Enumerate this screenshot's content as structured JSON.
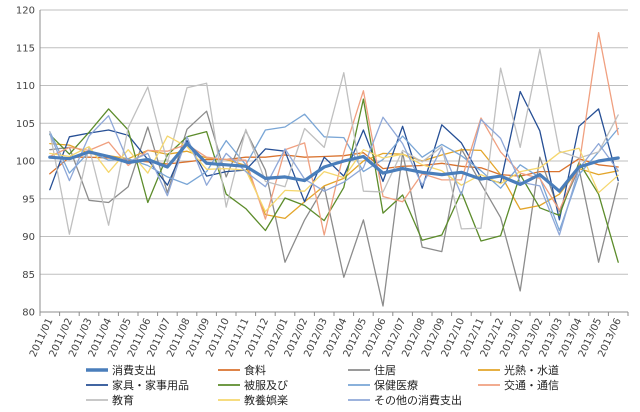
{
  "chart_data": {
    "type": "line",
    "title": "",
    "xlabel": "",
    "ylabel": "",
    "ylim": [
      80,
      120
    ],
    "yticks": [
      80,
      85,
      90,
      95,
      100,
      105,
      110,
      115,
      120
    ],
    "grid": "horizontal",
    "legend_position": "bottom",
    "x": [
      "2011/01",
      "2011/02",
      "2011/03",
      "2011/04",
      "2011/05",
      "2011/06",
      "2011/07",
      "2011/08",
      "2011/09",
      "2011/10",
      "2011/11",
      "2011/12",
      "2012/01",
      "2012/02",
      "2012/03",
      "2012/04",
      "2012/05",
      "2012/06",
      "2012/07",
      "2012/08",
      "2012/09",
      "2012/10",
      "2012/11",
      "2012/12",
      "2013/01",
      "2013/02",
      "2013/03",
      "2013/04",
      "2013/05",
      "2013/06"
    ],
    "series": [
      {
        "name": "消費支出",
        "color": "#4a7ebb",
        "width": 3.2,
        "values": [
          100.5,
          100.3,
          101.2,
          100.6,
          99.8,
          100.2,
          99.2,
          102.3,
          99.7,
          99.5,
          99.3,
          97.7,
          97.9,
          97.4,
          99.2,
          100.0,
          100.6,
          98.4,
          99.0,
          98.5,
          98.2,
          98.5,
          97.6,
          98.0,
          96.9,
          98.2,
          96.0,
          99.2,
          100.0,
          100.4
        ]
      },
      {
        "name": "食料",
        "color": "#d9732f",
        "width": 1.3,
        "values": [
          98.3,
          100.5,
          100.5,
          100.4,
          100.1,
          99.9,
          99.6,
          99.9,
          100.2,
          100.2,
          100.5,
          100.5,
          100.8,
          100.5,
          100.6,
          100.7,
          101.1,
          99.0,
          99.3,
          99.4,
          99.7,
          99.3,
          99.1,
          98.2,
          98.0,
          98.6,
          98.6,
          100.3,
          99.5,
          99.2
        ]
      },
      {
        "name": "住居",
        "color": "#8c8c8c",
        "width": 1.3,
        "values": [
          101.5,
          101.8,
          94.8,
          94.5,
          96.6,
          104.5,
          95.8,
          104.2,
          106.6,
          97.9,
          104.0,
          98.8,
          86.6,
          92.2,
          96.6,
          84.6,
          92.2,
          80.8,
          101.1,
          88.6,
          88.0,
          101.6,
          97.0,
          92.5,
          82.8,
          100.5,
          93.3,
          99.0,
          86.6,
          97.1
        ]
      },
      {
        "name": "光熱・水道",
        "color": "#e3a52a",
        "width": 1.3,
        "values": [
          102.3,
          102.1,
          101.0,
          100.7,
          100.3,
          101.4,
          100.9,
          101.3,
          100.4,
          100.2,
          99.4,
          92.9,
          92.4,
          94.6,
          96.7,
          97.7,
          100.0,
          101.0,
          100.9,
          100.0,
          100.8,
          101.5,
          101.4,
          98.2,
          93.6,
          94.1,
          95.6,
          99.0,
          98.2,
          98.7
        ]
      },
      {
        "name": "家具・家事用品",
        "color": "#264f95",
        "width": 1.3,
        "values": [
          96.2,
          103.2,
          103.7,
          104.1,
          103.4,
          100.2,
          96.8,
          102.7,
          98.0,
          98.6,
          98.8,
          101.6,
          101.3,
          94.6,
          100.5,
          98.0,
          104.1,
          97.3,
          104.6,
          96.4,
          104.8,
          102.4,
          97.8,
          97.1,
          109.2,
          104.0,
          92.2,
          104.6,
          106.9,
          97.4
        ]
      },
      {
        "name": "被服及び",
        "color": "#5c8c2b",
        "width": 1.3,
        "values": [
          103.5,
          100.9,
          103.8,
          106.9,
          104.1,
          94.5,
          100.8,
          103.2,
          103.9,
          95.6,
          93.7,
          90.8,
          95.1,
          94.1,
          92.1,
          96.5,
          108.2,
          93.1,
          95.5,
          89.5,
          90.2,
          95.9,
          89.4,
          90.1,
          98.2,
          93.8,
          92.8,
          99.8,
          95.6,
          86.6
        ]
      },
      {
        "name": "保健医療",
        "color": "#7aa6d6",
        "width": 1.3,
        "values": [
          103.9,
          98.4,
          101.2,
          100.1,
          100.3,
          99.4,
          97.9,
          96.9,
          98.6,
          102.7,
          99.5,
          104.1,
          104.5,
          106.2,
          103.2,
          103.1,
          98.6,
          100.2,
          103.3,
          100.5,
          102.2,
          100.7,
          98.7,
          96.4,
          99.5,
          97.8,
          90.8,
          98.2,
          101.2,
          104.3
        ]
      },
      {
        "name": "交通・通信",
        "color": "#f0a080",
        "width": 1.3,
        "values": [
          100.6,
          101.8,
          101.4,
          102.5,
          99.4,
          101.4,
          101.3,
          102.2,
          100.5,
          100.2,
          100.1,
          92.3,
          101.5,
          102.4,
          90.2,
          101.1,
          109.3,
          95.3,
          94.6,
          98.3,
          97.5,
          97.5,
          105.7,
          101.2,
          98.4,
          97.7,
          93.5,
          99.4,
          117.0,
          103.5
        ]
      },
      {
        "name": "教育",
        "color": "#c0c0c0",
        "width": 1.3,
        "values": [
          103.9,
          90.3,
          101.8,
          91.5,
          104.4,
          109.8,
          99.8,
          109.7,
          110.3,
          93.9,
          104.2,
          97.3,
          96.6,
          104.3,
          101.8,
          111.7,
          96.0,
          95.9,
          101.4,
          99.9,
          101.9,
          91.0,
          91.1,
          112.3,
          101.8,
          114.8,
          101.3,
          100.4,
          101.2,
          106.1
        ]
      },
      {
        "name": "教養娯楽",
        "color": "#f5d76e",
        "width": 1.3,
        "values": [
          101.0,
          100.6,
          101.9,
          98.5,
          101.5,
          98.4,
          103.3,
          101.9,
          98.9,
          99.0,
          98.8,
          93.3,
          96.1,
          96.0,
          98.6,
          97.8,
          101.5,
          100.4,
          100.9,
          99.5,
          98.7,
          96.8,
          98.2,
          97.0,
          98.6,
          99.1,
          101.1,
          101.7,
          95.8,
          98.1
        ]
      },
      {
        "name": "その他の消費支出",
        "color": "#8fa8d8",
        "width": 1.3,
        "values": [
          103.6,
          97.4,
          103.3,
          106.0,
          99.9,
          101.0,
          95.4,
          103.2,
          96.8,
          101.0,
          98.6,
          96.6,
          101.6,
          97.6,
          96.0,
          97.2,
          99.1,
          105.8,
          102.3,
          96.8,
          101.7,
          95.5,
          105.5,
          103.0,
          97.2,
          96.7,
          90.2,
          99.0,
          102.3,
          98.7
        ]
      }
    ]
  }
}
